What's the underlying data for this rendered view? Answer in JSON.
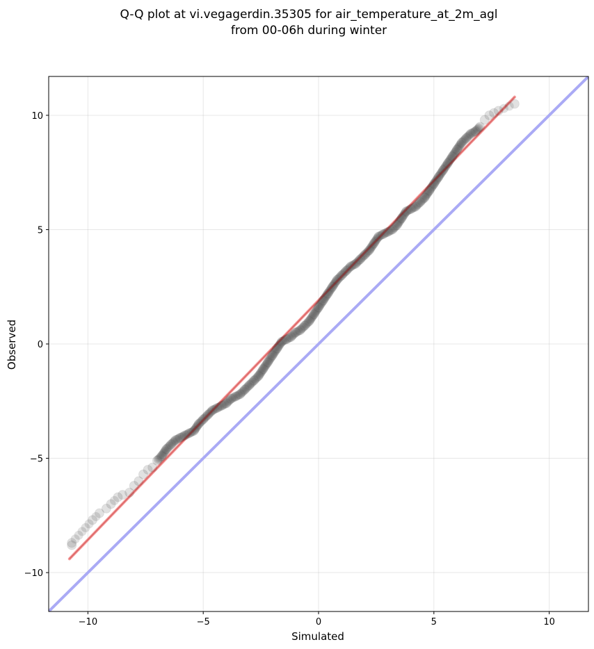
{
  "chart_data": {
    "type": "scatter",
    "title": [
      "Q-Q plot at vi.vegagerdin.35305 for air_temperature_at_2m_agl",
      "from 00-06h during winter"
    ],
    "xlabel": "Simulated",
    "ylabel": "Observed",
    "xlim": [
      -11.7,
      11.7
    ],
    "ylim": [
      -11.7,
      11.7
    ],
    "xticks": [
      -10,
      -5,
      0,
      5,
      10
    ],
    "yticks": [
      -10,
      -5,
      0,
      5,
      10
    ],
    "xtick_labels": [
      "−10",
      "−5",
      "0",
      "5",
      "10"
    ],
    "ytick_labels": [
      "−10",
      "−5",
      "0",
      "5",
      "10"
    ],
    "grid": true,
    "series": [
      {
        "kind": "quantile-points",
        "color": "#333333",
        "opacity": 0.15,
        "points": [
          [
            -10.7,
            -8.8
          ],
          [
            -10.7,
            -8.7
          ],
          [
            -9.8,
            -7.7
          ],
          [
            -9.5,
            -7.4
          ],
          [
            -9.2,
            -7.2
          ],
          [
            -9.0,
            -7.0
          ],
          [
            -8.7,
            -6.7
          ],
          [
            -8.5,
            -6.6
          ],
          [
            -8.2,
            -6.5
          ],
          [
            -8.0,
            -6.2
          ],
          [
            -7.8,
            -6.0
          ],
          [
            -7.6,
            -5.7
          ],
          [
            -7.4,
            -5.5
          ],
          [
            -7.2,
            -5.4
          ],
          [
            -7.0,
            -5.1
          ],
          [
            -6.8,
            -4.9
          ],
          [
            -6.6,
            -4.6
          ],
          [
            -6.4,
            -4.4
          ],
          [
            -6.2,
            -4.2
          ],
          [
            -6.0,
            -4.1
          ],
          [
            -5.8,
            -4.0
          ],
          [
            -5.6,
            -3.9
          ],
          [
            -5.4,
            -3.8
          ],
          [
            -5.2,
            -3.5
          ],
          [
            -5.0,
            -3.3
          ],
          [
            -4.8,
            -3.1
          ],
          [
            -4.6,
            -2.9
          ],
          [
            -4.4,
            -2.8
          ],
          [
            -4.2,
            -2.7
          ],
          [
            -4.0,
            -2.6
          ],
          [
            -3.8,
            -2.4
          ],
          [
            -3.6,
            -2.3
          ],
          [
            -3.4,
            -2.2
          ],
          [
            -3.2,
            -2.0
          ],
          [
            -3.0,
            -1.8
          ],
          [
            -2.8,
            -1.6
          ],
          [
            -2.6,
            -1.4
          ],
          [
            -2.4,
            -1.1
          ],
          [
            -2.2,
            -0.8
          ],
          [
            -2.0,
            -0.5
          ],
          [
            -1.8,
            -0.2
          ],
          [
            -1.6,
            0.1
          ],
          [
            -1.4,
            0.2
          ],
          [
            -1.2,
            0.3
          ],
          [
            -1.0,
            0.5
          ],
          [
            -0.8,
            0.6
          ],
          [
            -0.6,
            0.8
          ],
          [
            -0.4,
            1.0
          ],
          [
            -0.2,
            1.3
          ],
          [
            0.0,
            1.6
          ],
          [
            0.2,
            1.9
          ],
          [
            0.4,
            2.2
          ],
          [
            0.6,
            2.5
          ],
          [
            0.8,
            2.8
          ],
          [
            1.0,
            3.0
          ],
          [
            1.2,
            3.2
          ],
          [
            1.4,
            3.4
          ],
          [
            1.6,
            3.5
          ],
          [
            1.8,
            3.7
          ],
          [
            2.0,
            3.9
          ],
          [
            2.2,
            4.1
          ],
          [
            2.4,
            4.4
          ],
          [
            2.6,
            4.7
          ],
          [
            2.8,
            4.8
          ],
          [
            3.0,
            4.9
          ],
          [
            3.2,
            5.0
          ],
          [
            3.4,
            5.2
          ],
          [
            3.6,
            5.5
          ],
          [
            3.8,
            5.8
          ],
          [
            4.0,
            5.9
          ],
          [
            4.2,
            6.0
          ],
          [
            4.4,
            6.2
          ],
          [
            4.6,
            6.4
          ],
          [
            4.8,
            6.7
          ],
          [
            5.0,
            7.0
          ],
          [
            5.2,
            7.3
          ],
          [
            5.4,
            7.6
          ],
          [
            5.6,
            7.9
          ],
          [
            5.8,
            8.2
          ],
          [
            6.0,
            8.5
          ],
          [
            6.2,
            8.8
          ],
          [
            6.4,
            9.0
          ],
          [
            6.6,
            9.2
          ],
          [
            6.8,
            9.3
          ],
          [
            7.0,
            9.5
          ],
          [
            7.2,
            9.8
          ],
          [
            7.4,
            10.0
          ],
          [
            7.6,
            10.1
          ],
          [
            7.8,
            10.2
          ],
          [
            8.5,
            10.5
          ]
        ]
      },
      {
        "kind": "fit-line",
        "color": "#f08080",
        "opacity": 0.8,
        "points": [
          [
            -10.8,
            -9.4
          ],
          [
            8.5,
            10.8
          ]
        ]
      },
      {
        "kind": "identity-line",
        "color": "#aaaaf5",
        "points": [
          [
            -11.7,
            -11.7
          ],
          [
            11.7,
            11.7
          ]
        ]
      }
    ]
  }
}
